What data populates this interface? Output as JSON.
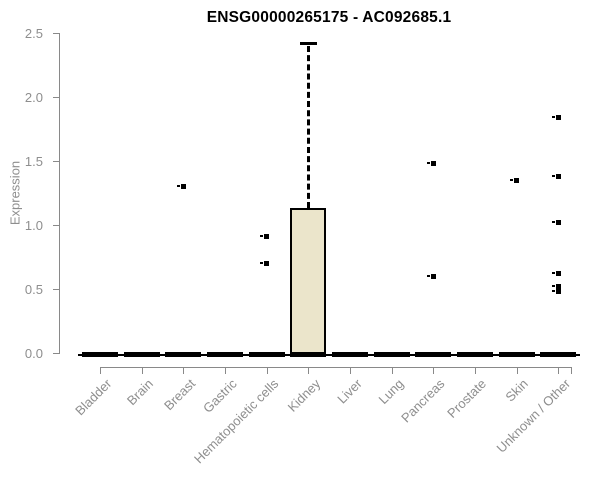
{
  "chart_data": {
    "type": "boxplot",
    "title": "ENSG00000265175 - AC092685.1",
    "ylabel": "Expression",
    "xlabel": "",
    "ylim": [
      0,
      2.5
    ],
    "grid": false,
    "legend": null,
    "yticks": [
      {
        "value": 0.0,
        "label": "0.0"
      },
      {
        "value": 0.5,
        "label": "0.5"
      },
      {
        "value": 1.0,
        "label": "1.0"
      },
      {
        "value": 1.5,
        "label": "1.5"
      },
      {
        "value": 2.0,
        "label": "2.0"
      },
      {
        "value": 2.5,
        "label": "2.5"
      }
    ],
    "categories": [
      "Bladder",
      "Brain",
      "Breast",
      "Gastric",
      "Hematopoietic cells",
      "Kidney",
      "Liver",
      "Lung",
      "Pancreas",
      "Prostate",
      "Skin",
      "Unknown / Other"
    ],
    "boxes": [
      {
        "category": "Bladder",
        "whisker_low": 0,
        "q1": 0,
        "median": 0,
        "q3": 0,
        "whisker_high": 0,
        "outliers": []
      },
      {
        "category": "Brain",
        "whisker_low": 0,
        "q1": 0,
        "median": 0,
        "q3": 0,
        "whisker_high": 0,
        "outliers": []
      },
      {
        "category": "Breast",
        "whisker_low": 0,
        "q1": 0,
        "median": 0,
        "q3": 0,
        "whisker_high": 0,
        "outliers": [
          1.3
        ]
      },
      {
        "category": "Gastric",
        "whisker_low": 0,
        "q1": 0,
        "median": 0,
        "q3": 0,
        "whisker_high": 0,
        "outliers": []
      },
      {
        "category": "Hematopoietic cells",
        "whisker_low": 0,
        "q1": 0,
        "median": 0,
        "q3": 0,
        "whisker_high": 0,
        "outliers": [
          0.91,
          0.7
        ]
      },
      {
        "category": "Kidney",
        "whisker_low": 0,
        "q1": 0,
        "median": 0,
        "q3": 1.13,
        "whisker_high": 2.42,
        "outliers": []
      },
      {
        "category": "Liver",
        "whisker_low": 0,
        "q1": 0,
        "median": 0,
        "q3": 0,
        "whisker_high": 0,
        "outliers": []
      },
      {
        "category": "Lung",
        "whisker_low": 0,
        "q1": 0,
        "median": 0,
        "q3": 0,
        "whisker_high": 0,
        "outliers": []
      },
      {
        "category": "Pancreas",
        "whisker_low": 0,
        "q1": 0,
        "median": 0,
        "q3": 0,
        "whisker_high": 0,
        "outliers": [
          1.48,
          0.6
        ]
      },
      {
        "category": "Prostate",
        "whisker_low": 0,
        "q1": 0,
        "median": 0,
        "q3": 0,
        "whisker_high": 0,
        "outliers": []
      },
      {
        "category": "Skin",
        "whisker_low": 0,
        "q1": 0,
        "median": 0,
        "q3": 0,
        "whisker_high": 0,
        "outliers": [
          1.35
        ]
      },
      {
        "category": "Unknown / Other",
        "whisker_low": 0,
        "q1": 0,
        "median": 0,
        "q3": 0,
        "whisker_high": 0,
        "outliers": [
          1.84,
          1.38,
          1.02,
          0.62,
          0.52,
          0.48
        ]
      }
    ],
    "colors": {
      "box_fill": "#ebe5cb",
      "box_border": "#000000",
      "median": "#000000",
      "outlier": "#000000",
      "axis": "#898989",
      "tick_label": "#8e8e8e",
      "title": "#000000",
      "background": "#ffffff"
    }
  }
}
